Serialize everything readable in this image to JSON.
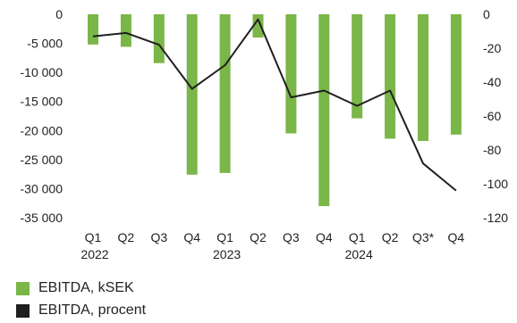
{
  "chart_data": {
    "type": "bar",
    "categories": [
      "Q1",
      "Q2",
      "Q3",
      "Q4",
      "Q1",
      "Q2",
      "Q3",
      "Q4",
      "Q1",
      "Q2",
      "Q3*",
      "Q4"
    ],
    "year_labels": [
      {
        "label": "2022",
        "index": 0
      },
      {
        "label": "2023",
        "index": 4
      },
      {
        "label": "2024",
        "index": 8
      }
    ],
    "series": [
      {
        "name": "EBITDA, kSEK",
        "type": "bar",
        "axis": "left",
        "color": "#7ab648",
        "values": [
          -5200,
          -5600,
          -8400,
          -27600,
          -27300,
          -4000,
          -20500,
          -33000,
          -17900,
          -21400,
          -21800,
          -20700
        ]
      },
      {
        "name": "EBITDA, procent",
        "type": "line",
        "axis": "right",
        "color": "#1f1f1f",
        "values": [
          -13,
          -11,
          -18,
          -44,
          -30,
          -3,
          -49,
          -45,
          -54,
          -45,
          -88,
          -104
        ]
      }
    ],
    "y_left": {
      "min": -35000,
      "max": 0,
      "ticks": [
        0,
        -5000,
        -10000,
        -15000,
        -20000,
        -25000,
        -30000,
        -35000
      ],
      "tick_labels": [
        "0",
        "-5 000",
        "-10 000",
        "-15 000",
        "-20 000",
        "-25 000",
        "-30 000",
        "-35 000"
      ]
    },
    "y_right": {
      "min": -120,
      "max": 0,
      "ticks": [
        0,
        -20,
        -40,
        -60,
        -80,
        -100,
        -120
      ],
      "tick_labels": [
        "0",
        "-20",
        "-40",
        "-60",
        "-80",
        "-100",
        "-120"
      ]
    },
    "legend": {
      "placement": "bottom-left"
    },
    "grid": false
  }
}
